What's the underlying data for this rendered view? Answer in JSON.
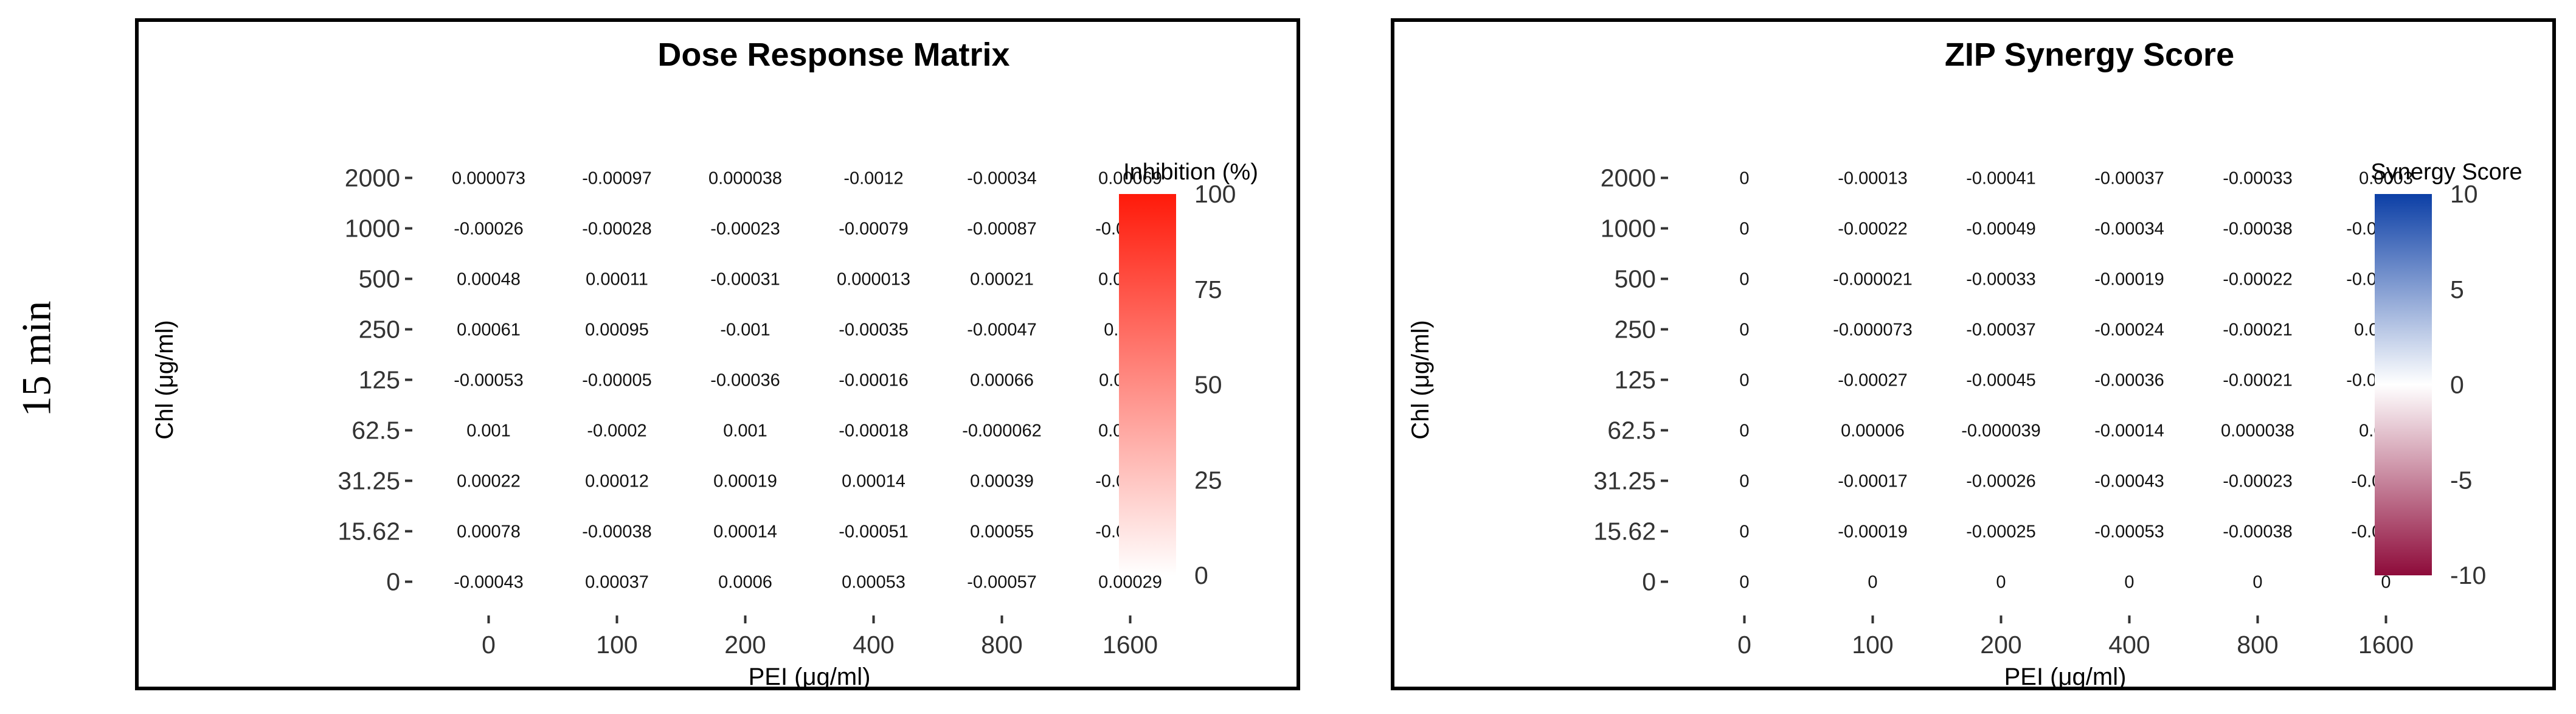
{
  "row_label": "15 min",
  "chart_data": [
    {
      "type": "heatmap",
      "title": "Dose Response Matrix",
      "xlabel": "PEI (μg/ml)",
      "ylabel": "Chl (μg/ml)",
      "x": [
        "0",
        "100",
        "200",
        "400",
        "800",
        "1600"
      ],
      "y": [
        "2000",
        "1000",
        "500",
        "250",
        "125",
        "62.5",
        "31.25",
        "15.62",
        "0"
      ],
      "values": [
        [
          "0.000073",
          "-0.00097",
          "0.000038",
          "-0.0012",
          "-0.00034",
          "0.00069"
        ],
        [
          "-0.00026",
          "-0.00028",
          "-0.00023",
          "-0.00079",
          "-0.00087",
          "-0.00032"
        ],
        [
          "0.00048",
          "0.00011",
          "-0.00031",
          "0.000013",
          "0.00021",
          "0.00014"
        ],
        [
          "0.00061",
          "0.00095",
          "-0.001",
          "-0.00035",
          "-0.00047",
          "0.0011"
        ],
        [
          "-0.00053",
          "-0.00005",
          "-0.00036",
          "-0.00016",
          "0.00066",
          "0.00011"
        ],
        [
          "0.001",
          "-0.0002",
          "0.001",
          "-0.00018",
          "-0.000062",
          "0.00065"
        ],
        [
          "0.00022",
          "0.00012",
          "0.00019",
          "0.00014",
          "0.00039",
          "-0.00047"
        ],
        [
          "0.00078",
          "-0.00038",
          "0.00014",
          "-0.00051",
          "0.00055",
          "-0.00062"
        ],
        [
          "-0.00043",
          "0.00037",
          "0.0006",
          "0.00053",
          "-0.00057",
          "0.00029"
        ]
      ],
      "legend": {
        "title": "Inhibition (%)",
        "ticks": [
          "100",
          "75",
          "50",
          "25",
          "0"
        ],
        "range": [
          0,
          100
        ],
        "colors": [
          "#ffffff",
          "#ff1a0a"
        ],
        "placement": "right"
      }
    },
    {
      "type": "heatmap",
      "title": "ZIP Synergy Score",
      "xlabel": "PEI (μg/ml)",
      "ylabel": "Chl (μg/ml)",
      "x": [
        "0",
        "100",
        "200",
        "400",
        "800",
        "1600"
      ],
      "y": [
        "2000",
        "1000",
        "500",
        "250",
        "125",
        "62.5",
        "31.25",
        "15.62",
        "0"
      ],
      "values": [
        [
          "0",
          "-0.00013",
          "-0.00041",
          "-0.00037",
          "-0.00033",
          "0.0003"
        ],
        [
          "0",
          "-0.00022",
          "-0.00049",
          "-0.00034",
          "-0.00038",
          "-0.000022"
        ],
        [
          "0",
          "-0.000021",
          "-0.00033",
          "-0.00019",
          "-0.00022",
          "-0.000056"
        ],
        [
          "0",
          "-0.000073",
          "-0.00037",
          "-0.00024",
          "-0.00021",
          "0.00022"
        ],
        [
          "0",
          "-0.00027",
          "-0.00045",
          "-0.00036",
          "-0.00021",
          "-0.000052"
        ],
        [
          "0",
          "0.00006",
          "-0.000039",
          "-0.00014",
          "0.000038",
          "0.0001"
        ],
        [
          "0",
          "-0.00017",
          "-0.00026",
          "-0.00043",
          "-0.00023",
          "-0.00042"
        ],
        [
          "0",
          "-0.00019",
          "-0.00025",
          "-0.00053",
          "-0.00038",
          "-0.00054"
        ],
        [
          "0",
          "0",
          "0",
          "0",
          "0",
          "0"
        ]
      ],
      "legend": {
        "title": "Synergy Score",
        "ticks": [
          "10",
          "5",
          "0",
          "-5",
          "-10"
        ],
        "range": [
          -10,
          10
        ],
        "colors": [
          "#8e0b3a",
          "#ffffff",
          "#0c3fa6"
        ],
        "placement": "right"
      }
    }
  ]
}
